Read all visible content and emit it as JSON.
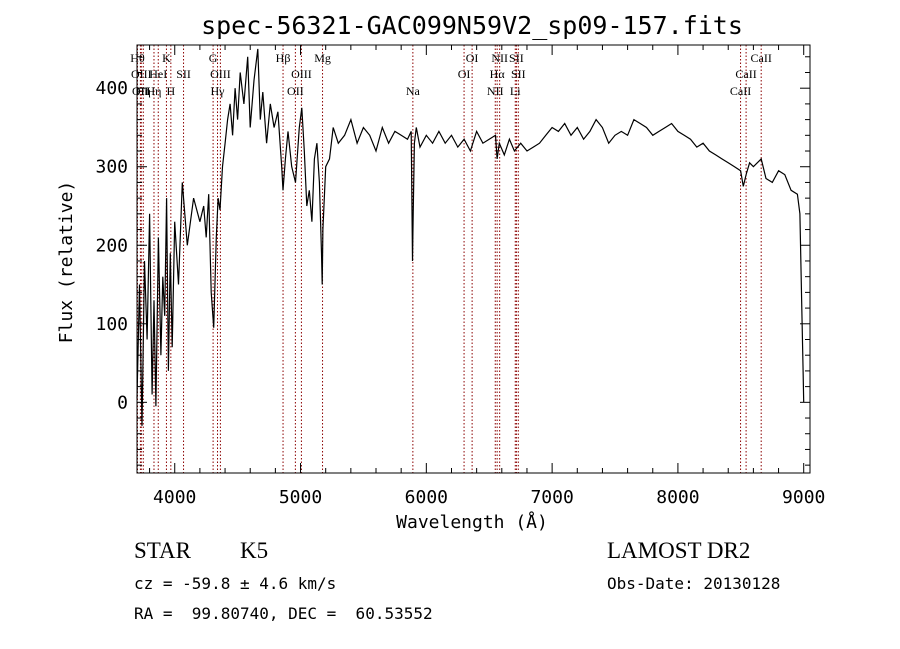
{
  "chart_data": {
    "type": "line",
    "title": "spec-56321-GAC099N59V2_sp09-157.fits",
    "xlabel": "Wavelength (Å)",
    "ylabel": "Flux (relative)",
    "xlim": [
      3700,
      9050
    ],
    "ylim": [
      -90,
      455
    ],
    "xticks": [
      4000,
      5000,
      6000,
      7000,
      8000,
      9000
    ],
    "yticks": [
      0,
      100,
      200,
      300,
      400
    ],
    "grid": false,
    "line_color": "#000000",
    "marker_color": "#8b0000",
    "series": [
      {
        "x": [
          3700,
          3720,
          3740,
          3760,
          3780,
          3800,
          3820,
          3835,
          3850,
          3870,
          3890,
          3905,
          3920,
          3935,
          3950,
          3965,
          3980,
          4000,
          4030,
          4060,
          4100,
          4150,
          4200,
          4230,
          4250,
          4270,
          4290,
          4310,
          4330,
          4345,
          4360,
          4380,
          4400,
          4420,
          4440,
          4460,
          4480,
          4500,
          4520,
          4550,
          4580,
          4600,
          4630,
          4660,
          4680,
          4700,
          4730,
          4760,
          4790,
          4820,
          4850,
          4861,
          4880,
          4900,
          4930,
          4960,
          4990,
          5010,
          5030,
          5050,
          5070,
          5090,
          5110,
          5130,
          5150,
          5167,
          5172,
          5178,
          5200,
          5230,
          5260,
          5300,
          5350,
          5400,
          5450,
          5500,
          5550,
          5600,
          5650,
          5700,
          5750,
          5800,
          5850,
          5880,
          5890,
          5896,
          5905,
          5920,
          5950,
          6000,
          6050,
          6100,
          6150,
          6200,
          6250,
          6300,
          6350,
          6400,
          6450,
          6500,
          6550,
          6563,
          6580,
          6620,
          6660,
          6700,
          6750,
          6800,
          6850,
          6900,
          6950,
          7000,
          7050,
          7100,
          7150,
          7200,
          7250,
          7300,
          7350,
          7400,
          7450,
          7500,
          7550,
          7600,
          7650,
          7700,
          7750,
          7800,
          7850,
          7900,
          7950,
          8000,
          8050,
          8100,
          8150,
          8200,
          8250,
          8300,
          8350,
          8400,
          8450,
          8498,
          8520,
          8542,
          8570,
          8600,
          8662,
          8700,
          8750,
          8800,
          8850,
          8900,
          8950,
          8970,
          8985,
          8995,
          9000
        ],
        "y": [
          5,
          150,
          -30,
          180,
          80,
          240,
          10,
          130,
          -5,
          210,
          60,
          160,
          110,
          260,
          40,
          190,
          70,
          230,
          150,
          280,
          200,
          260,
          230,
          250,
          210,
          265,
          140,
          95,
          210,
          260,
          245,
          300,
          330,
          360,
          380,
          340,
          400,
          360,
          420,
          380,
          440,
          350,
          410,
          450,
          360,
          395,
          330,
          380,
          350,
          370,
          300,
          270,
          310,
          345,
          300,
          280,
          350,
          375,
          320,
          250,
          270,
          230,
          310,
          330,
          280,
          190,
          150,
          220,
          300,
          310,
          350,
          330,
          340,
          360,
          330,
          350,
          340,
          320,
          350,
          330,
          345,
          340,
          335,
          345,
          180,
          240,
          330,
          350,
          325,
          340,
          330,
          345,
          330,
          340,
          325,
          335,
          320,
          345,
          330,
          335,
          340,
          310,
          330,
          315,
          335,
          320,
          330,
          320,
          325,
          330,
          340,
          350,
          345,
          355,
          340,
          350,
          335,
          345,
          360,
          350,
          330,
          340,
          345,
          340,
          360,
          355,
          350,
          340,
          345,
          350,
          355,
          345,
          340,
          335,
          325,
          330,
          320,
          315,
          310,
          305,
          300,
          295,
          275,
          290,
          305,
          300,
          310,
          285,
          280,
          295,
          290,
          270,
          265,
          240,
          120,
          40,
          0
        ]
      }
    ],
    "lines": [
      {
        "x": 3704,
        "label": "Hθ",
        "row": 1
      },
      {
        "x": 3727,
        "label": "OII",
        "row": 3
      },
      {
        "x": 3734,
        "label": "OIII",
        "row": 2
      },
      {
        "x": 3750,
        "label": "Hη",
        "row": 3
      },
      {
        "x": 3835,
        "label": "Hη",
        "row": 3
      },
      {
        "x": 3869,
        "label": "HeI",
        "row": 2
      },
      {
        "x": 3934,
        "label": "K",
        "row": 1
      },
      {
        "x": 3969,
        "label": "H",
        "row": 3
      },
      {
        "x": 4070,
        "label": "SII",
        "row": 2
      },
      {
        "x": 4305,
        "label": "G",
        "row": 1
      },
      {
        "x": 4340,
        "label": "Hγ",
        "row": 3
      },
      {
        "x": 4363,
        "label": "OIII",
        "row": 2
      },
      {
        "x": 4861,
        "label": "Hβ",
        "row": 1
      },
      {
        "x": 4959,
        "label": "OII",
        "row": 3
      },
      {
        "x": 5007,
        "label": "OIII",
        "row": 2
      },
      {
        "x": 5175,
        "label": "Mg",
        "row": 1
      },
      {
        "x": 5893,
        "label": "Na",
        "row": 3
      },
      {
        "x": 6300,
        "label": "OI",
        "row": 2
      },
      {
        "x": 6364,
        "label": "OI",
        "row": 1
      },
      {
        "x": 6548,
        "label": "NII",
        "row": 3
      },
      {
        "x": 6563,
        "label": "Hα",
        "row": 2
      },
      {
        "x": 6583,
        "label": "NII",
        "row": 1
      },
      {
        "x": 6707,
        "label": "Li",
        "row": 3
      },
      {
        "x": 6716,
        "label": "SII",
        "row": 1
      },
      {
        "x": 6731,
        "label": "SII",
        "row": 2
      },
      {
        "x": 8498,
        "label": "CaII",
        "row": 3
      },
      {
        "x": 8542,
        "label": "CaII",
        "row": 2
      },
      {
        "x": 8662,
        "label": "CaII",
        "row": 1
      }
    ]
  },
  "info": {
    "class_text": "STAR",
    "subclass_text": "K5",
    "survey_text": "LAMOST DR2",
    "cz_text": "cz = -59.8 ± 4.6 km/s",
    "obs_date_text": "Obs-Date: 20130128",
    "coords_text": "RA =  99.80740, DEC =  60.53552"
  }
}
